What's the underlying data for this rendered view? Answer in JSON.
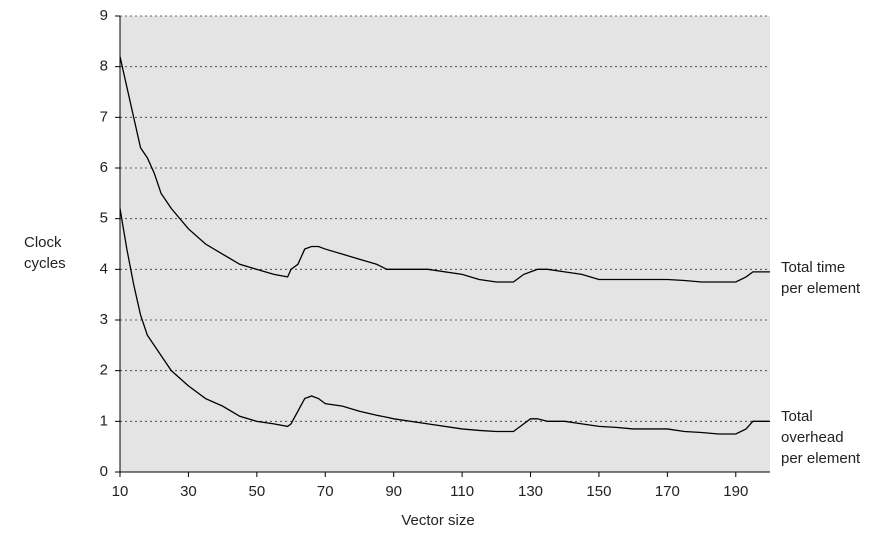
{
  "chart_data": {
    "type": "line",
    "x_label": "Vector size",
    "y_label": "Clock\ncycles",
    "x": [
      10,
      12,
      14,
      16,
      18,
      20,
      22,
      25,
      30,
      35,
      40,
      45,
      50,
      55,
      59,
      60,
      62,
      64,
      66,
      68,
      70,
      75,
      80,
      85,
      88,
      90,
      100,
      110,
      115,
      120,
      125,
      128,
      130,
      132,
      135,
      140,
      145,
      150,
      155,
      160,
      170,
      175,
      180,
      185,
      190,
      193,
      195,
      200
    ],
    "series": [
      {
        "name": "Total time\nper element",
        "color": "#000000",
        "values": [
          8.2,
          7.6,
          7.0,
          6.4,
          6.2,
          5.9,
          5.5,
          5.2,
          4.8,
          4.5,
          4.3,
          4.1,
          4.0,
          3.9,
          3.85,
          4.0,
          4.1,
          4.4,
          4.45,
          4.45,
          4.4,
          4.3,
          4.2,
          4.1,
          4.0,
          4.0,
          4.0,
          3.9,
          3.8,
          3.75,
          3.75,
          3.9,
          3.95,
          4.0,
          4.0,
          3.95,
          3.9,
          3.8,
          3.8,
          3.8,
          3.8,
          3.78,
          3.75,
          3.75,
          3.75,
          3.85,
          3.95,
          3.95
        ]
      },
      {
        "name": "Total\noverhead\nper element",
        "color": "#000000",
        "values": [
          5.2,
          4.4,
          3.7,
          3.1,
          2.7,
          2.5,
          2.3,
          2.0,
          1.7,
          1.45,
          1.3,
          1.1,
          1.0,
          0.95,
          0.9,
          0.95,
          1.2,
          1.45,
          1.5,
          1.45,
          1.35,
          1.3,
          1.2,
          1.12,
          1.08,
          1.05,
          0.95,
          0.85,
          0.82,
          0.8,
          0.8,
          0.95,
          1.05,
          1.05,
          1.0,
          1.0,
          0.95,
          0.9,
          0.88,
          0.85,
          0.85,
          0.8,
          0.78,
          0.75,
          0.75,
          0.85,
          1.0,
          1.0
        ]
      }
    ],
    "xlim": [
      10,
      200
    ],
    "ylim": [
      0,
      9
    ],
    "xticks": [
      10,
      30,
      50,
      70,
      90,
      110,
      130,
      150,
      170,
      190
    ],
    "yticks": [
      0,
      1,
      2,
      3,
      4,
      5,
      6,
      7,
      8,
      9
    ],
    "grid": true
  }
}
